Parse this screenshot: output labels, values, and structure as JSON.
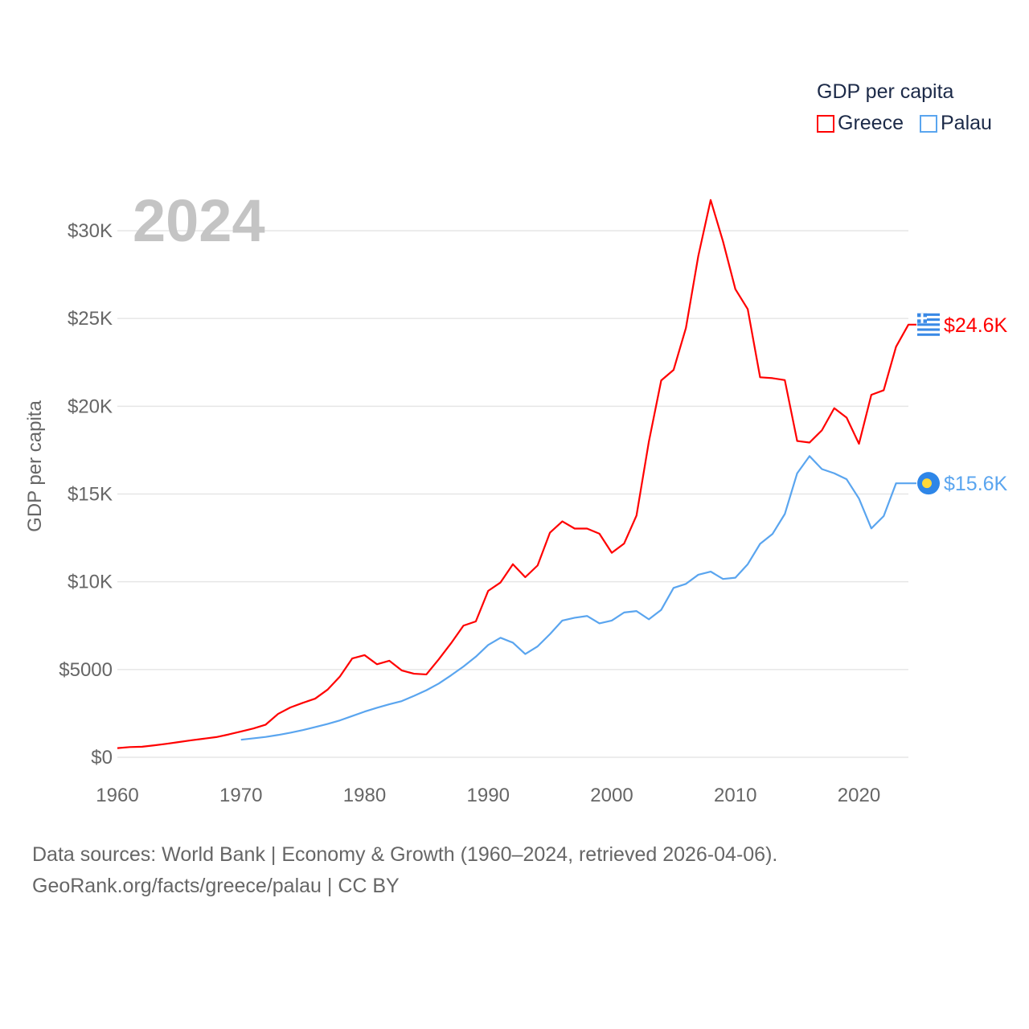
{
  "legend": {
    "title": "GDP per capita",
    "items": [
      {
        "name": "Greece",
        "color": "#ff0000"
      },
      {
        "name": "Palau",
        "color": "#5aa5ef"
      }
    ]
  },
  "year_label": "2024",
  "footer": {
    "line1": "Data sources: World Bank | Economy & Growth (1960–2024, retrieved 2026-04-06).",
    "line2": "GeoRank.org/facts/greece/palau | CC BY"
  },
  "chart_data": {
    "type": "line",
    "title": "GDP per capita",
    "xlabel": "",
    "ylabel": "GDP per capita",
    "xlim": [
      1960,
      2024
    ],
    "ylim": [
      0,
      30000
    ],
    "grid": true,
    "legend_position": "top-right",
    "x_ticks": [
      "1960",
      "1970",
      "1980",
      "1990",
      "2000",
      "2010",
      "2020"
    ],
    "x_tick_values": [
      1960,
      1970,
      1980,
      1990,
      2000,
      2010,
      2020
    ],
    "y_ticks": [
      "$0",
      "$5000",
      "$10K",
      "$15K",
      "$20K",
      "$25K",
      "$30K"
    ],
    "y_tick_values": [
      0,
      5000,
      10000,
      15000,
      20000,
      25000,
      30000
    ],
    "series": [
      {
        "name": "Greece",
        "color": "#ff0000",
        "end_label": "$24.6K",
        "start_year": 1960,
        "values": [
          520,
          580,
          600,
          680,
          770,
          870,
          970,
          1060,
          1150,
          1300,
          1470,
          1640,
          1860,
          2470,
          2840,
          3100,
          3340,
          3850,
          4600,
          5630,
          5820,
          5300,
          5500,
          4950,
          4760,
          4720,
          5580,
          6500,
          7500,
          7740,
          9480,
          9960,
          11000,
          10260,
          10930,
          12800,
          13440,
          13030,
          13030,
          12740,
          11650,
          12180,
          13770,
          17980,
          21470,
          22070,
          24460,
          28560,
          31750,
          29390,
          26670,
          25530,
          21650,
          21600,
          21490,
          18020,
          17930,
          18630,
          19890,
          19350,
          17860,
          20650,
          20910,
          23390,
          24650
        ]
      },
      {
        "name": "Palau",
        "color": "#5aa5ef",
        "end_label": "$15.6K",
        "start_year": 1970,
        "values": [
          1000,
          1080,
          1160,
          1270,
          1400,
          1550,
          1720,
          1900,
          2100,
          2350,
          2600,
          2820,
          3020,
          3200,
          3500,
          3820,
          4200,
          4670,
          5170,
          5730,
          6400,
          6810,
          6530,
          5880,
          6320,
          7020,
          7790,
          7950,
          8050,
          7630,
          7790,
          8250,
          8330,
          7860,
          8400,
          9650,
          9880,
          10400,
          10580,
          10160,
          10230,
          11000,
          12160,
          12720,
          13860,
          16180,
          17160,
          16420,
          16180,
          15840,
          14740,
          13040,
          13740,
          15610,
          15610
        ]
      }
    ]
  }
}
